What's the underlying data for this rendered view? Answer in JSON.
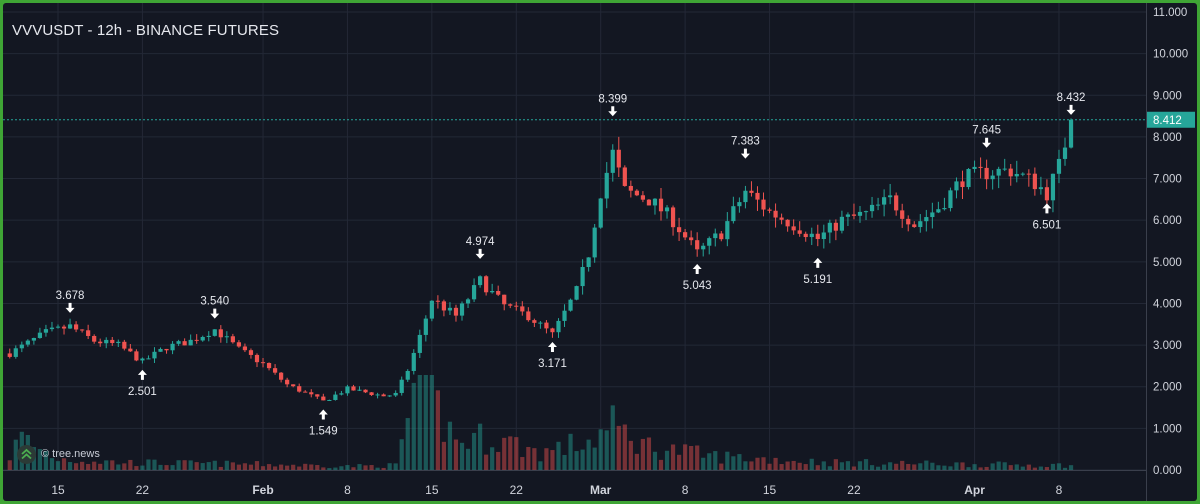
{
  "header": {
    "title": "VVVUSDT - 12h - BINANCE FUTURES"
  },
  "watermark": {
    "text": "© tree.news",
    "icon": "tree-news-logo-icon"
  },
  "colors": {
    "background": "#131722",
    "frame": "#3fa535",
    "up": "#26a69a",
    "down": "#ef5350",
    "grid": "#232836",
    "text": "#d1d4dc",
    "price_line": "#26a69a"
  },
  "chart_data": {
    "type": "candlestick",
    "timeframe": "12h",
    "x_ticks": [
      "15",
      "22",
      "Feb",
      "8",
      "15",
      "22",
      "Mar",
      "8",
      "15",
      "22",
      "Apr",
      "8"
    ],
    "x_ticks_bold": [
      "Feb",
      "Mar",
      "Apr"
    ],
    "y_ticks": [
      "11.000",
      "10.000",
      "9.000",
      "8.000",
      "7.000",
      "6.000",
      "5.000",
      "4.000",
      "3.000",
      "2.000",
      "1.000",
      "0.000"
    ],
    "ylim": [
      0,
      11
    ],
    "grid": true,
    "last_price": "8.412",
    "annotations": [
      {
        "label": "3.678",
        "type": "high",
        "date": "Jan 16"
      },
      {
        "label": "2.501",
        "type": "low",
        "date": "Jan 22"
      },
      {
        "label": "3.540",
        "type": "high",
        "date": "Jan 28"
      },
      {
        "label": "1.549",
        "type": "low",
        "date": "Feb 6"
      },
      {
        "label": "4.974",
        "type": "high",
        "date": "Feb 19"
      },
      {
        "label": "3.171",
        "type": "low",
        "date": "Feb 25"
      },
      {
        "label": "8.399",
        "type": "high",
        "date": "Mar 2"
      },
      {
        "label": "5.043",
        "type": "low",
        "date": "Mar 9"
      },
      {
        "label": "7.383",
        "type": "high",
        "date": "Mar 13"
      },
      {
        "label": "5.191",
        "type": "low",
        "date": "Mar 19"
      },
      {
        "label": "7.645",
        "type": "high",
        "date": "Apr 2"
      },
      {
        "label": "6.501",
        "type": "low",
        "date": "Apr 7"
      },
      {
        "label": "8.432",
        "type": "high",
        "date": "Apr 9"
      }
    ],
    "price_path": [
      [
        "Jan 11",
        2.8
      ],
      [
        "Jan 14",
        3.3
      ],
      [
        "Jan 16",
        3.45
      ],
      [
        "Jan 18",
        3.1
      ],
      [
        "Jan 20",
        3.0
      ],
      [
        "Jan 22",
        2.6
      ],
      [
        "Jan 24",
        2.95
      ],
      [
        "Jan 26",
        3.1
      ],
      [
        "Jan 28",
        3.38
      ],
      [
        "Jan 30",
        2.9
      ],
      [
        "Feb 1",
        2.55
      ],
      [
        "Feb 3",
        2.05
      ],
      [
        "Feb 6",
        1.65
      ],
      [
        "Feb 8",
        1.95
      ],
      [
        "Feb 11",
        1.78
      ],
      [
        "Feb 12",
        1.82
      ],
      [
        "Feb 13",
        2.4
      ],
      [
        "Feb 14",
        3.2
      ],
      [
        "Feb 15",
        4.1
      ],
      [
        "Feb 17",
        3.7
      ],
      [
        "Feb 19",
        4.55
      ],
      [
        "Feb 21",
        3.95
      ],
      [
        "Feb 23",
        3.7
      ],
      [
        "Feb 25",
        3.25
      ],
      [
        "Feb 27",
        4.3
      ],
      [
        "Feb 28",
        5.2
      ],
      [
        "Mar 1",
        6.7
      ],
      [
        "Mar 2",
        7.6
      ],
      [
        "Mar 3",
        6.7
      ],
      [
        "Mar 5",
        6.5
      ],
      [
        "Mar 7",
        6.0
      ],
      [
        "Mar 9",
        5.2
      ],
      [
        "Mar 11",
        5.7
      ],
      [
        "Mar 13",
        6.7
      ],
      [
        "Mar 15",
        6.2
      ],
      [
        "Mar 17",
        5.9
      ],
      [
        "Mar 19",
        5.55
      ],
      [
        "Mar 21",
        6.0
      ],
      [
        "Mar 23",
        6.15
      ],
      [
        "Mar 25",
        6.5
      ],
      [
        "Mar 27",
        5.9
      ],
      [
        "Mar 29",
        6.3
      ],
      [
        "Mar 31",
        7.0
      ],
      [
        "Apr 2",
        7.15
      ],
      [
        "Apr 4",
        7.2
      ],
      [
        "Apr 6",
        6.9
      ],
      [
        "Apr 7",
        6.65
      ],
      [
        "Apr 8",
        7.3
      ],
      [
        "Apr 9",
        8.4
      ]
    ],
    "volume_path": [
      [
        "Jan 11",
        0.15
      ],
      [
        "Jan 12",
        0.35
      ],
      [
        "Jan 13",
        0.25
      ],
      [
        "Jan 15",
        0.12
      ],
      [
        "Jan 20",
        0.08
      ],
      [
        "Feb 1",
        0.06
      ],
      [
        "Feb 8",
        0.04
      ],
      [
        "Feb 12",
        0.05
      ],
      [
        "Feb 13",
        0.55
      ],
      [
        "Feb 14",
        1.05
      ],
      [
        "Feb 15",
        0.75
      ],
      [
        "Feb 17",
        0.3
      ],
      [
        "Feb 20",
        0.35
      ],
      [
        "Feb 24",
        0.18
      ],
      [
        "Feb 28",
        0.3
      ],
      [
        "Mar 2",
        0.45
      ],
      [
        "Mar 5",
        0.25
      ],
      [
        "Mar 10",
        0.15
      ],
      [
        "Mar 14",
        0.12
      ],
      [
        "Mar 20",
        0.08
      ],
      [
        "Apr 1",
        0.06
      ],
      [
        "Apr 9",
        0.05
      ]
    ],
    "volume_scale_max": 1.0
  }
}
